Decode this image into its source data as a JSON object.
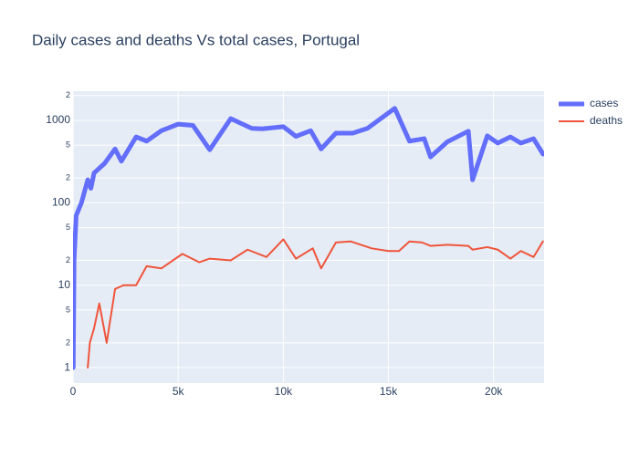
{
  "chart_data": {
    "type": "line",
    "title": "Daily cases and deaths Vs total cases, Portugal",
    "log_y": true,
    "grid": true,
    "xlim": [
      0,
      22400
    ],
    "ylim": [
      0.65,
      2260
    ],
    "xticks": [
      0,
      {
        "value": 5000,
        "label": "5k"
      },
      {
        "value": 10000,
        "label": "10k"
      },
      {
        "value": 15000,
        "label": "15k"
      },
      {
        "value": 20000,
        "label": "20k"
      }
    ],
    "yticks": [
      1,
      {
        "value": 2,
        "label": "2"
      },
      {
        "value": 5,
        "label": "5"
      },
      10,
      {
        "value": 20,
        "label": "2"
      },
      {
        "value": 50,
        "label": "5"
      },
      100,
      {
        "value": 200,
        "label": "2"
      },
      {
        "value": 500,
        "label": "5"
      },
      1000,
      {
        "value": 2000,
        "label": "2"
      }
    ],
    "series": [
      {
        "name": "cases",
        "color": "#636efa",
        "width": 5,
        "x": [
          10,
          50,
          150,
          400,
          700,
          850,
          1000,
          1500,
          2000,
          2300,
          3000,
          3500,
          4200,
          5000,
          5700,
          6500,
          7500,
          8500,
          9000,
          10000,
          10600,
          11300,
          11800,
          12500,
          13300,
          14000,
          15300,
          16000,
          16700,
          17000,
          17800,
          18800,
          19000,
          19700,
          20200,
          20800,
          21300,
          21900,
          22350
        ],
        "values": [
          1,
          20,
          70,
          100,
          190,
          150,
          230,
          300,
          450,
          320,
          630,
          560,
          750,
          900,
          870,
          440,
          1050,
          800,
          790,
          840,
          640,
          750,
          450,
          700,
          700,
          800,
          1400,
          560,
          600,
          360,
          550,
          740,
          190,
          650,
          530,
          630,
          530,
          600,
          390
        ]
      },
      {
        "name": "deaths",
        "color": "#EF553B",
        "width": 2,
        "x": [
          700,
          800,
          1000,
          1250,
          1600,
          2000,
          2400,
          3000,
          3500,
          4200,
          5200,
          6000,
          6500,
          7500,
          8300,
          9200,
          10000,
          10600,
          11400,
          11800,
          12500,
          13200,
          14200,
          15000,
          15500,
          16000,
          16600,
          17000,
          17800,
          18800,
          19000,
          19700,
          20200,
          20800,
          21300,
          21900,
          22350
        ],
        "values": [
          1,
          2,
          3,
          6,
          2,
          9,
          10,
          10,
          17,
          16,
          24,
          19,
          21,
          20,
          27,
          22,
          36,
          21,
          28,
          16,
          33,
          34,
          28,
          26,
          26,
          34,
          33,
          30,
          31,
          30,
          27,
          29,
          27,
          21,
          26,
          22,
          34
        ]
      }
    ]
  }
}
